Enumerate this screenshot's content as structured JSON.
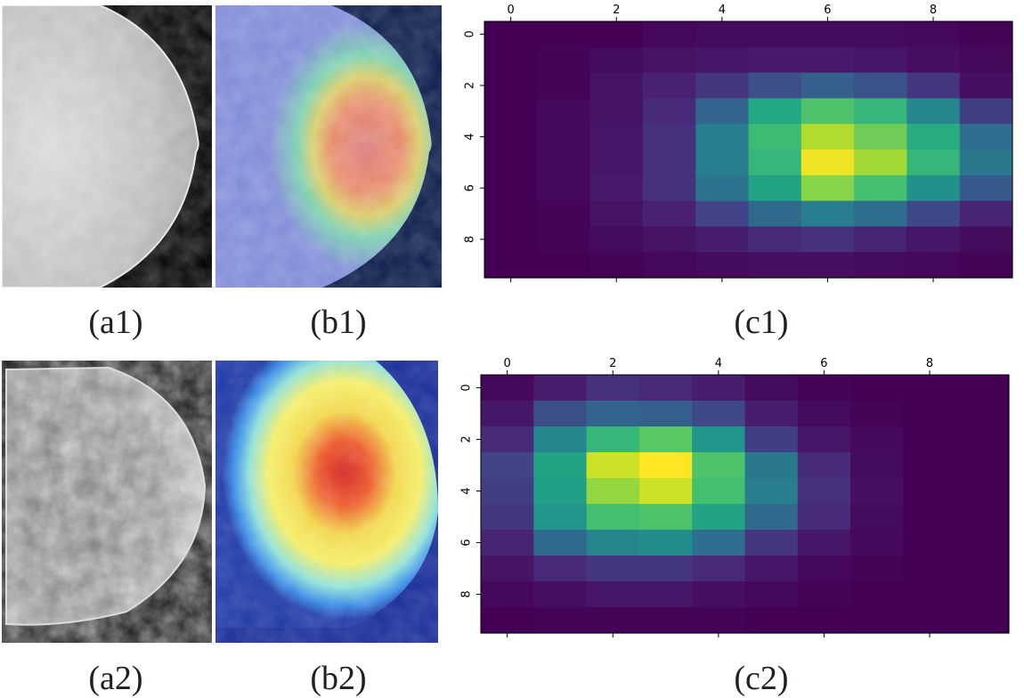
{
  "captions": {
    "a1": "(a1)",
    "b1": "(b1)",
    "c1": "(c1)",
    "a2": "(a2)",
    "b2": "(b2)",
    "c2": "(c2)"
  },
  "colors": {
    "viridis": [
      "#440154",
      "#482475",
      "#414487",
      "#355f8d",
      "#2a788e",
      "#21918c",
      "#22a884",
      "#44bf70",
      "#7ad151",
      "#bddf26",
      "#fde725"
    ]
  },
  "chart_data": [
    {
      "type": "heatmap",
      "id": "c1",
      "colormap": "viridis",
      "x_ticks": [
        0,
        2,
        4,
        6,
        8
      ],
      "y_ticks": [
        0,
        2,
        4,
        6,
        8
      ],
      "x_tick_position": "top",
      "xlim": [
        -0.5,
        9.5
      ],
      "ylim": [
        -0.5,
        9.5
      ],
      "values": [
        [
          0.0,
          0.0,
          0.0,
          0.02,
          0.03,
          0.03,
          0.03,
          0.03,
          0.02,
          0.01
        ],
        [
          0.0,
          0.01,
          0.03,
          0.05,
          0.06,
          0.07,
          0.07,
          0.06,
          0.04,
          0.02
        ],
        [
          0.0,
          0.01,
          0.05,
          0.09,
          0.16,
          0.24,
          0.3,
          0.25,
          0.16,
          0.04
        ],
        [
          0.0,
          0.02,
          0.05,
          0.12,
          0.32,
          0.6,
          0.72,
          0.66,
          0.46,
          0.18
        ],
        [
          0.0,
          0.02,
          0.06,
          0.14,
          0.42,
          0.68,
          0.88,
          0.78,
          0.62,
          0.36
        ],
        [
          0.0,
          0.02,
          0.06,
          0.14,
          0.42,
          0.66,
          0.98,
          0.86,
          0.66,
          0.4
        ],
        [
          0.0,
          0.02,
          0.07,
          0.14,
          0.38,
          0.58,
          0.82,
          0.7,
          0.5,
          0.28
        ],
        [
          0.0,
          0.01,
          0.05,
          0.09,
          0.2,
          0.34,
          0.42,
          0.36,
          0.22,
          0.1
        ],
        [
          0.0,
          0.01,
          0.03,
          0.05,
          0.08,
          0.12,
          0.14,
          0.1,
          0.06,
          0.03
        ],
        [
          0.0,
          0.0,
          0.01,
          0.02,
          0.03,
          0.04,
          0.04,
          0.03,
          0.02,
          0.01
        ]
      ]
    },
    {
      "type": "heatmap",
      "id": "c2",
      "colormap": "viridis",
      "x_ticks": [
        0,
        2,
        4,
        6,
        8
      ],
      "y_ticks": [
        0,
        2,
        4,
        6,
        8
      ],
      "x_tick_position": "top",
      "xlim": [
        -0.5,
        9.5
      ],
      "ylim": [
        -0.5,
        9.5
      ],
      "values": [
        [
          0.02,
          0.08,
          0.14,
          0.12,
          0.08,
          0.03,
          0.01,
          0.0,
          0.0,
          0.0
        ],
        [
          0.06,
          0.24,
          0.32,
          0.3,
          0.22,
          0.08,
          0.03,
          0.01,
          0.0,
          0.0
        ],
        [
          0.12,
          0.46,
          0.66,
          0.74,
          0.52,
          0.18,
          0.06,
          0.02,
          0.0,
          0.0
        ],
        [
          0.2,
          0.58,
          0.92,
          1.0,
          0.72,
          0.4,
          0.12,
          0.03,
          0.0,
          0.0
        ],
        [
          0.18,
          0.56,
          0.84,
          0.92,
          0.7,
          0.42,
          0.14,
          0.04,
          0.0,
          0.0
        ],
        [
          0.16,
          0.52,
          0.7,
          0.72,
          0.58,
          0.34,
          0.12,
          0.03,
          0.0,
          0.0
        ],
        [
          0.1,
          0.34,
          0.46,
          0.48,
          0.36,
          0.16,
          0.06,
          0.02,
          0.0,
          0.0
        ],
        [
          0.05,
          0.12,
          0.16,
          0.16,
          0.12,
          0.06,
          0.02,
          0.01,
          0.0,
          0.0
        ],
        [
          0.02,
          0.04,
          0.06,
          0.06,
          0.04,
          0.02,
          0.01,
          0.0,
          0.0,
          0.0
        ],
        [
          0.0,
          0.01,
          0.01,
          0.01,
          0.01,
          0.0,
          0.0,
          0.0,
          0.0,
          0.0
        ]
      ]
    }
  ]
}
